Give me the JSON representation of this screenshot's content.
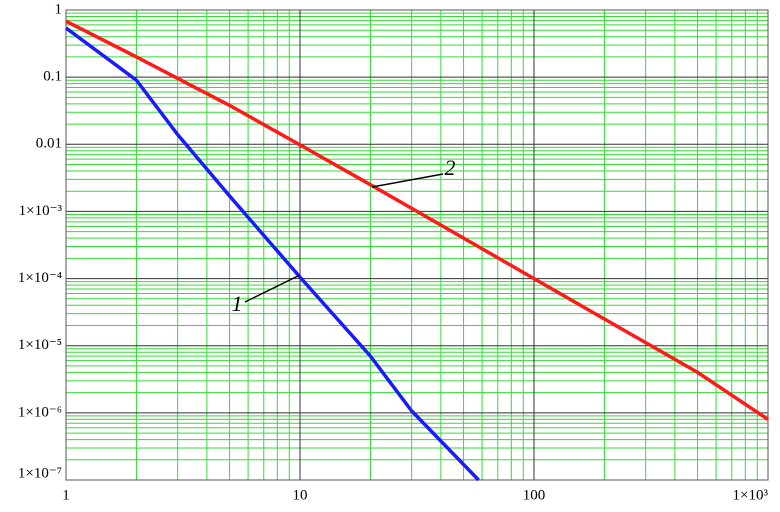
{
  "chart_data": {
    "type": "line",
    "x_scale": "log",
    "y_scale": "log",
    "grid": true,
    "minor_grid": true,
    "xlim": [
      1,
      1000
    ],
    "ylim": [
      1e-07,
      1
    ],
    "xticks": [
      1,
      10,
      100,
      {
        "value": 1000,
        "label": "1×10³"
      }
    ],
    "yticks": [
      1,
      0.1,
      0.01,
      {
        "value": 0.001,
        "label": "1×10⁻³"
      },
      {
        "value": 0.0001,
        "label": "1×10⁻⁴"
      },
      {
        "value": 1e-05,
        "label": "1×10⁻⁵"
      },
      {
        "value": 1e-06,
        "label": "1×10⁻⁶"
      },
      {
        "value": 1e-07,
        "label": "1×10⁻⁷"
      }
    ],
    "series": [
      {
        "name": "1",
        "color": "#1a1aff",
        "x": [
          1,
          2,
          3,
          5,
          10,
          20,
          30,
          58
        ],
        "values": [
          0.54,
          0.09,
          0.014,
          0.0017,
          0.000105,
          7e-06,
          1.07e-06,
          1e-07
        ]
      },
      {
        "name": "2",
        "color": "#ff1a1a",
        "x": [
          1,
          2,
          5,
          10,
          20,
          50,
          100,
          200,
          500,
          1000
        ],
        "values": [
          0.68,
          0.2,
          0.038,
          0.0098,
          0.0025,
          0.0004,
          0.0001,
          2.5e-05,
          4e-06,
          8e-07
        ]
      }
    ],
    "annotations": [
      "1",
      "2"
    ]
  }
}
